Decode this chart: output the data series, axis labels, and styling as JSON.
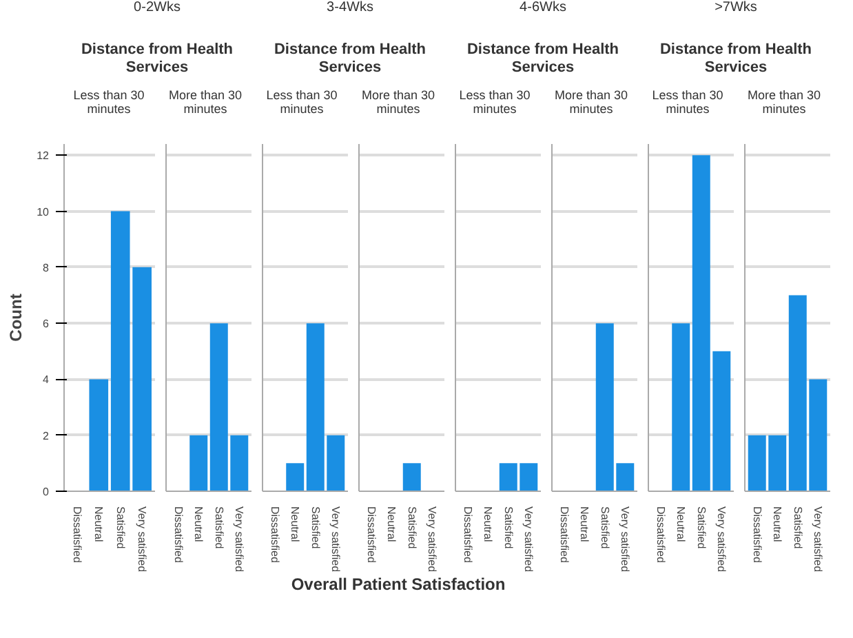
{
  "chart_data": [
    {
      "type": "bar",
      "title": "Less than 30 minutes",
      "annotations": [
        "0-2Wks",
        "Distance from Health Services"
      ],
      "ylabel": "Count",
      "categories": [
        "Dissatisfied",
        "Neutral",
        "Satisfied",
        "Very satisfied"
      ],
      "values": [
        0,
        4,
        10,
        8
      ],
      "color": "#1a8fe3",
      "ylim": [
        0,
        12.4
      ],
      "yticks": [
        0,
        2,
        4,
        6,
        8,
        10,
        12
      ],
      "grid": "y"
    },
    {
      "type": "bar",
      "title": "More than 30 minutes",
      "categories": [
        "Dissatisfied",
        "Neutral",
        "Satisfied",
        "Very satisfied"
      ],
      "values": [
        0,
        2,
        6,
        2
      ],
      "color": "#1a8fe3",
      "ylim": [
        0,
        12.4
      ],
      "yticks": [
        0,
        2,
        4,
        6,
        8,
        10,
        12
      ],
      "grid": "y",
      "tick_labels": "x"
    },
    {
      "type": "bar",
      "title": "Less than 30 minutes",
      "annotations": [
        "3-4Wks",
        "Distance from Health Services"
      ],
      "categories": [
        "Dissatisfied",
        "Neutral",
        "Satisfied",
        "Very satisfied"
      ],
      "values": [
        0,
        1,
        6,
        2
      ],
      "color": "#1a8fe3",
      "ylim": [
        0,
        12.4
      ],
      "yticks": [
        0,
        2,
        4,
        6,
        8,
        10,
        12
      ],
      "grid": "y",
      "tick_labels": "x"
    },
    {
      "type": "bar",
      "title": "More than 30 minutes",
      "xlabel": "Overall Patient Satisfaction",
      "categories": [
        "Dissatisfied",
        "Neutral",
        "Satisfied",
        "Very satisfied"
      ],
      "values": [
        0,
        0,
        1,
        0
      ],
      "color": "#1a8fe3",
      "ylim": [
        0,
        12.4
      ],
      "yticks": [
        0,
        2,
        4,
        6,
        8,
        10,
        12
      ],
      "grid": "y",
      "tick_labels": "x"
    },
    {
      "type": "bar",
      "title": "Less than 30 minutes",
      "annotations": [
        "4-6Wks",
        "Distance from Health Services"
      ],
      "categories": [
        "Dissatisfied",
        "Neutral",
        "Satisfied",
        "Very satisfied"
      ],
      "values": [
        0,
        0,
        1,
        1
      ],
      "color": "#1a8fe3",
      "ylim": [
        0,
        12.4
      ],
      "yticks": [
        0,
        2,
        4,
        6,
        8,
        10,
        12
      ],
      "grid": "y",
      "tick_labels": "x"
    },
    {
      "type": "bar",
      "title": "More than 30 minutes",
      "categories": [
        "Dissatisfied",
        "Neutral",
        "Satisfied",
        "Very satisfied"
      ],
      "values": [
        0,
        0,
        6,
        1
      ],
      "color": "#1a8fe3",
      "ylim": [
        0,
        12.4
      ],
      "yticks": [
        0,
        2,
        4,
        6,
        8,
        10,
        12
      ],
      "grid": "y",
      "tick_labels": "x"
    },
    {
      "type": "bar",
      "title": "Less than 30 minutes",
      "annotations": [
        ">7Wks",
        "Distance from Health Services"
      ],
      "categories": [
        "Dissatisfied",
        "Neutral",
        "Satisfied",
        "Very satisfied"
      ],
      "values": [
        0,
        6,
        12,
        5
      ],
      "color": "#1a8fe3",
      "ylim": [
        0,
        12.4
      ],
      "yticks": [
        0,
        2,
        4,
        6,
        8,
        10,
        12
      ],
      "grid": "y",
      "tick_labels": "x"
    },
    {
      "type": "bar",
      "title": "More than 30 minutes",
      "categories": [
        "Dissatisfied",
        "Neutral",
        "Satisfied",
        "Very satisfied"
      ],
      "values": [
        2,
        2,
        7,
        4
      ],
      "color": "#1a8fe3",
      "ylim": [
        0,
        12.4
      ],
      "yticks": [
        0,
        2,
        4,
        6,
        8,
        10,
        12
      ],
      "grid": "y",
      "tick_labels": "x"
    }
  ]
}
